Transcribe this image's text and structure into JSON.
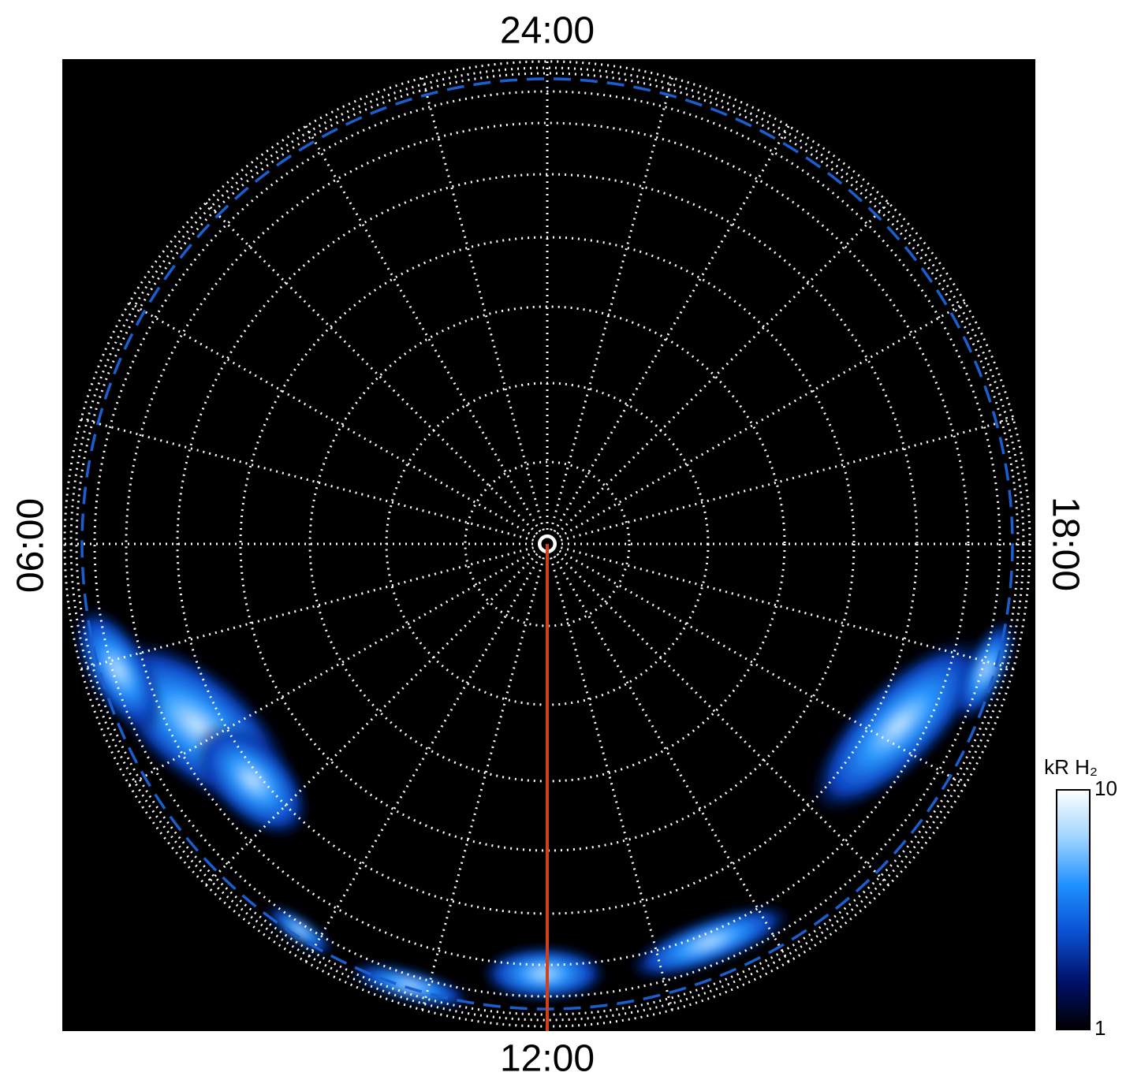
{
  "chart_data": {
    "type": "polar",
    "time_labels": {
      "top": "24:00",
      "left": "06:00",
      "right": "18:00",
      "bottom": "12:00"
    },
    "colorbar": {
      "title": "kR H₂",
      "lim": [
        1,
        10
      ],
      "ticks": [
        1,
        10
      ],
      "log": true,
      "colors": [
        "#000000",
        "#00106a",
        "#0a4fd0",
        "#1e90ff",
        "#9fd4ff",
        "#ffffff"
      ]
    },
    "grid_color": "#ffffff",
    "oval_color": "#1a5fd0",
    "meridian_color": "#d0401a"
  }
}
